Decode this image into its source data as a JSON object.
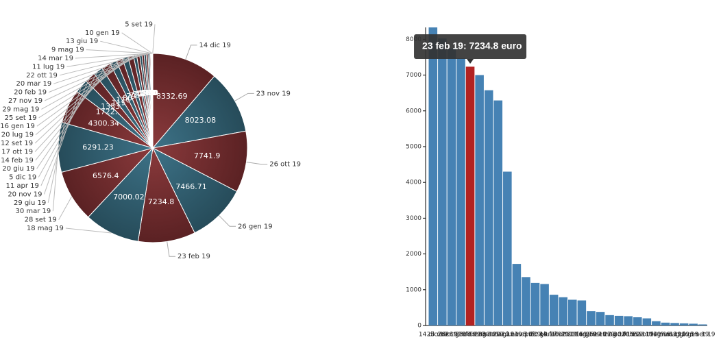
{
  "chart_data": [
    {
      "type": "pie",
      "categories": [
        "14 dic 19",
        "23 nov 19",
        "26 ott 19",
        "26 gen 19",
        "23 feb 19",
        "18 mag 19",
        "28 set 19",
        "30 mar 19",
        "29 giu 19",
        "20 nov 19",
        "11 apr 19",
        "5 dic 19",
        "20 giu 19",
        "14 feb 19",
        "17 ott 19",
        "12 set 19",
        "20 lug 19",
        "16 gen 19",
        "25 set 19",
        "29 mag 19",
        "27 nov 19",
        "20 feb 19",
        "20 mar 19",
        "22 ott 19",
        "11 lug 19",
        "14 mar 19",
        "9 mag 19",
        "13 giu 19",
        "10 gen 19",
        "5 set 19"
      ],
      "values": [
        8332.69,
        8023.08,
        7741.9,
        7466.71,
        7234.8,
        7000.02,
        6576.4,
        6291.23,
        4300.34,
        1722.25,
        1353.83,
        1190,
        1160,
        860,
        790,
        720,
        700,
        400,
        380,
        290,
        270,
        260,
        230,
        200,
        120,
        80,
        70,
        60,
        50,
        30
      ],
      "colors": [
        "#6b2b2e",
        "#2f5b6c"
      ]
    },
    {
      "type": "bar",
      "categories": [
        "14 dic 19",
        "23 nov 19",
        "26 ott 19",
        "26 gen 19",
        "23 feb 19",
        "18 mag 19",
        "28 set 19",
        "30 mar 19",
        "29 giu 19",
        "20 nov 19",
        "11 apr 19",
        "5 dic 19",
        "20 giu 19",
        "14 feb 19",
        "17 ott 19",
        "12 set 19",
        "20 lug 19",
        "16 gen 19",
        "25 set 19",
        "29 mag 19",
        "27 nov 19",
        "20 feb 19",
        "20 mar 19",
        "22 ott 19",
        "11 lug 19",
        "14 mar 19",
        "9 mag 19",
        "13 giu 19",
        "10 gen 19",
        "5 set 19"
      ],
      "values": [
        8332.69,
        8023.08,
        7741.9,
        7466.71,
        7234.8,
        7000.02,
        6576.4,
        6291.23,
        4300.34,
        1722.25,
        1353.83,
        1190,
        1160,
        860,
        790,
        720,
        700,
        400,
        380,
        290,
        270,
        260,
        230,
        200,
        120,
        80,
        70,
        60,
        50,
        30
      ],
      "color": "#4682b4",
      "highlight": "23 feb 19",
      "highlight_color": "#b22222",
      "annotation": "23 feb 19: 7234.8 euro",
      "ylim": [
        0,
        8332.69
      ],
      "yticks": [
        0,
        1000,
        2000,
        3000,
        4000,
        5000,
        6000,
        7000,
        8000
      ]
    }
  ]
}
